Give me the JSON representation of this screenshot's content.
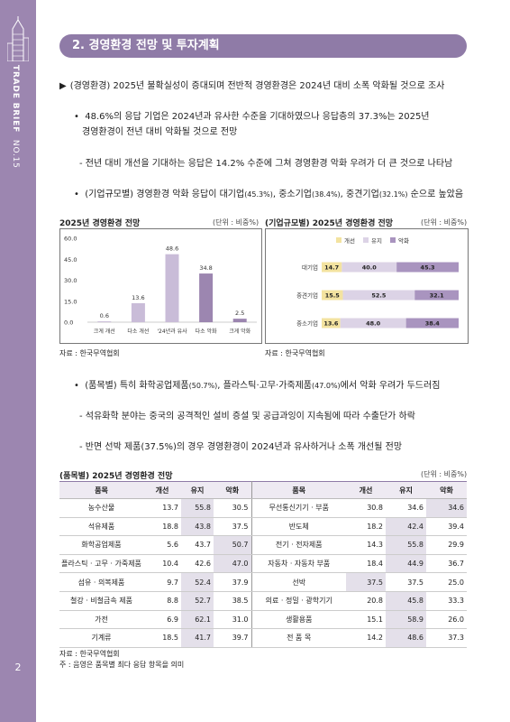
{
  "sidebar": {
    "brand": "TRADE BRIEF",
    "issue": "NO.15",
    "page_number": "2"
  },
  "section_title": "2. 경영환경 전망 및 투자계획",
  "main_point": "(경영환경) 2025년 불확실성이 증대되며 전반적 경영환경은 2024년 대비 소폭 악화될 것으로 조사",
  "bullets": {
    "b1_line1": "48.6%의 응답 기업은 2024년과 유사한 수준을 기대하였으나 응답층의 37.3%는 2025년",
    "b1_line2": "경영환경이 전년 대비 악화될 것으로 전망",
    "b1_sub": "- 전년 대비 개선을 기대하는 응답은 14.2% 수준에 그쳐 경영환경 악화 우려가 더 큰 것으로 나타남",
    "b2_main": "(기업규모별) 경영환경 악화 응답이 대기업",
    "b2_v1": "(45.3%)",
    "b2_mid1": ", 중소기업",
    "b2_v2": "(38.4%)",
    "b2_mid2": ", 중견기업",
    "b2_v3": "(32.1%)",
    "b2_end": " 순으로 높았음",
    "b3_main": "(품목별) 특히 화학공업제품",
    "b3_v1": "(50.7%)",
    "b3_mid": ", 플라스틱·고무·가죽제품",
    "b3_v2": "(47.0%)",
    "b3_end": "에서 악화 우려가 두드러짐",
    "b3_sub1": "- 석유화학 분야는 중국의 공격적인 설비 증설 및 공급과잉이 지속됨에 따라 수출단가 하락",
    "b3_sub2": "- 반면 선박 제품(37.5%)의 경우 경영환경이 2024년과 유사하거나 소폭 개선될 전망"
  },
  "chart1": {
    "title": "2025년 경영환경 전망",
    "unit": "(단위 : 비중%)",
    "source": "자료 : 한국무역협회",
    "bar_color": "#c9bcd8",
    "highlight_color": "#9c86b0"
  },
  "chart2": {
    "title": "(기업규모별) 2025년 경영환경 전망",
    "unit": "(단위 : 비중%)",
    "source": "자료 : 한국무역협회",
    "colors": {
      "개선": "#f3e3a0",
      "유지": "#dcd3e6",
      "악화": "#a994bf"
    }
  },
  "chart_data": [
    {
      "type": "bar",
      "title": "2025년 경영환경 전망",
      "categories": [
        "크게 개선",
        "다소 개선",
        "'24년과 유사",
        "다소 악화",
        "크게 악화"
      ],
      "values": [
        0.6,
        13.6,
        48.6,
        34.8,
        2.5
      ],
      "yticks": [
        "60.0",
        "45.0",
        "30.0",
        "15.0",
        "0.0"
      ],
      "ylim": [
        0,
        60
      ]
    },
    {
      "type": "bar",
      "stacked": true,
      "orientation": "horizontal",
      "title": "(기업규모별) 2025년 경영환경 전망",
      "categories": [
        "대기업",
        "중견기업",
        "중소기업"
      ],
      "series": [
        {
          "name": "개선",
          "values": [
            14.7,
            15.5,
            13.6
          ]
        },
        {
          "name": "유지",
          "values": [
            40.0,
            52.5,
            48.0
          ]
        },
        {
          "name": "악화",
          "values": [
            45.3,
            32.1,
            38.4
          ]
        }
      ],
      "legend": "top"
    }
  ],
  "table": {
    "title": "(품목별) 2025년 경영환경 전망",
    "unit": "(단위 : 비중%)",
    "headers": [
      "품목",
      "개선",
      "유지",
      "악화",
      "품목",
      "개선",
      "유지",
      "악화"
    ],
    "rows": [
      [
        "농수산물",
        "13.7",
        "55.8",
        "30.5",
        "무선통신기기 · 부품",
        "30.8",
        "34.6",
        "34.6"
      ],
      [
        "석유제품",
        "18.8",
        "43.8",
        "37.5",
        "반도체",
        "18.2",
        "42.4",
        "39.4"
      ],
      [
        "화학공업제품",
        "5.6",
        "43.7",
        "50.7",
        "전기 · 전자제품",
        "14.3",
        "55.8",
        "29.9"
      ],
      [
        "플라스틱 · 고무 · 가죽제품",
        "10.4",
        "42.6",
        "47.0",
        "자동차 · 자동차 부품",
        "18.4",
        "44.9",
        "36.7"
      ],
      [
        "섬유 · 의복제품",
        "9.7",
        "52.4",
        "37.9",
        "선박",
        "37.5",
        "37.5",
        "25.0"
      ],
      [
        "철강 · 비철금속 제품",
        "8.8",
        "52.7",
        "38.5",
        "의료 · 정밀 · 광학기기",
        "20.8",
        "45.8",
        "33.3"
      ],
      [
        "가전",
        "6.9",
        "62.1",
        "31.0",
        "생활용품",
        "15.1",
        "58.9",
        "26.0"
      ],
      [
        "기계류",
        "18.5",
        "41.7",
        "39.7",
        "전 품 목",
        "14.2",
        "48.6",
        "37.3"
      ]
    ],
    "highlights": [
      [
        0,
        2
      ],
      [
        1,
        2
      ],
      [
        2,
        3
      ],
      [
        3,
        3
      ],
      [
        4,
        2
      ],
      [
        5,
        2
      ],
      [
        6,
        2
      ],
      [
        7,
        2
      ],
      [
        0,
        7
      ],
      [
        1,
        6
      ],
      [
        2,
        6
      ],
      [
        3,
        6
      ],
      [
        4,
        5
      ],
      [
        5,
        6
      ],
      [
        6,
        6
      ],
      [
        7,
        6
      ]
    ],
    "source": "자료 : 한국무역협회",
    "note": "주 : 음영은 품목별 최다 응답 항목을 의미"
  }
}
